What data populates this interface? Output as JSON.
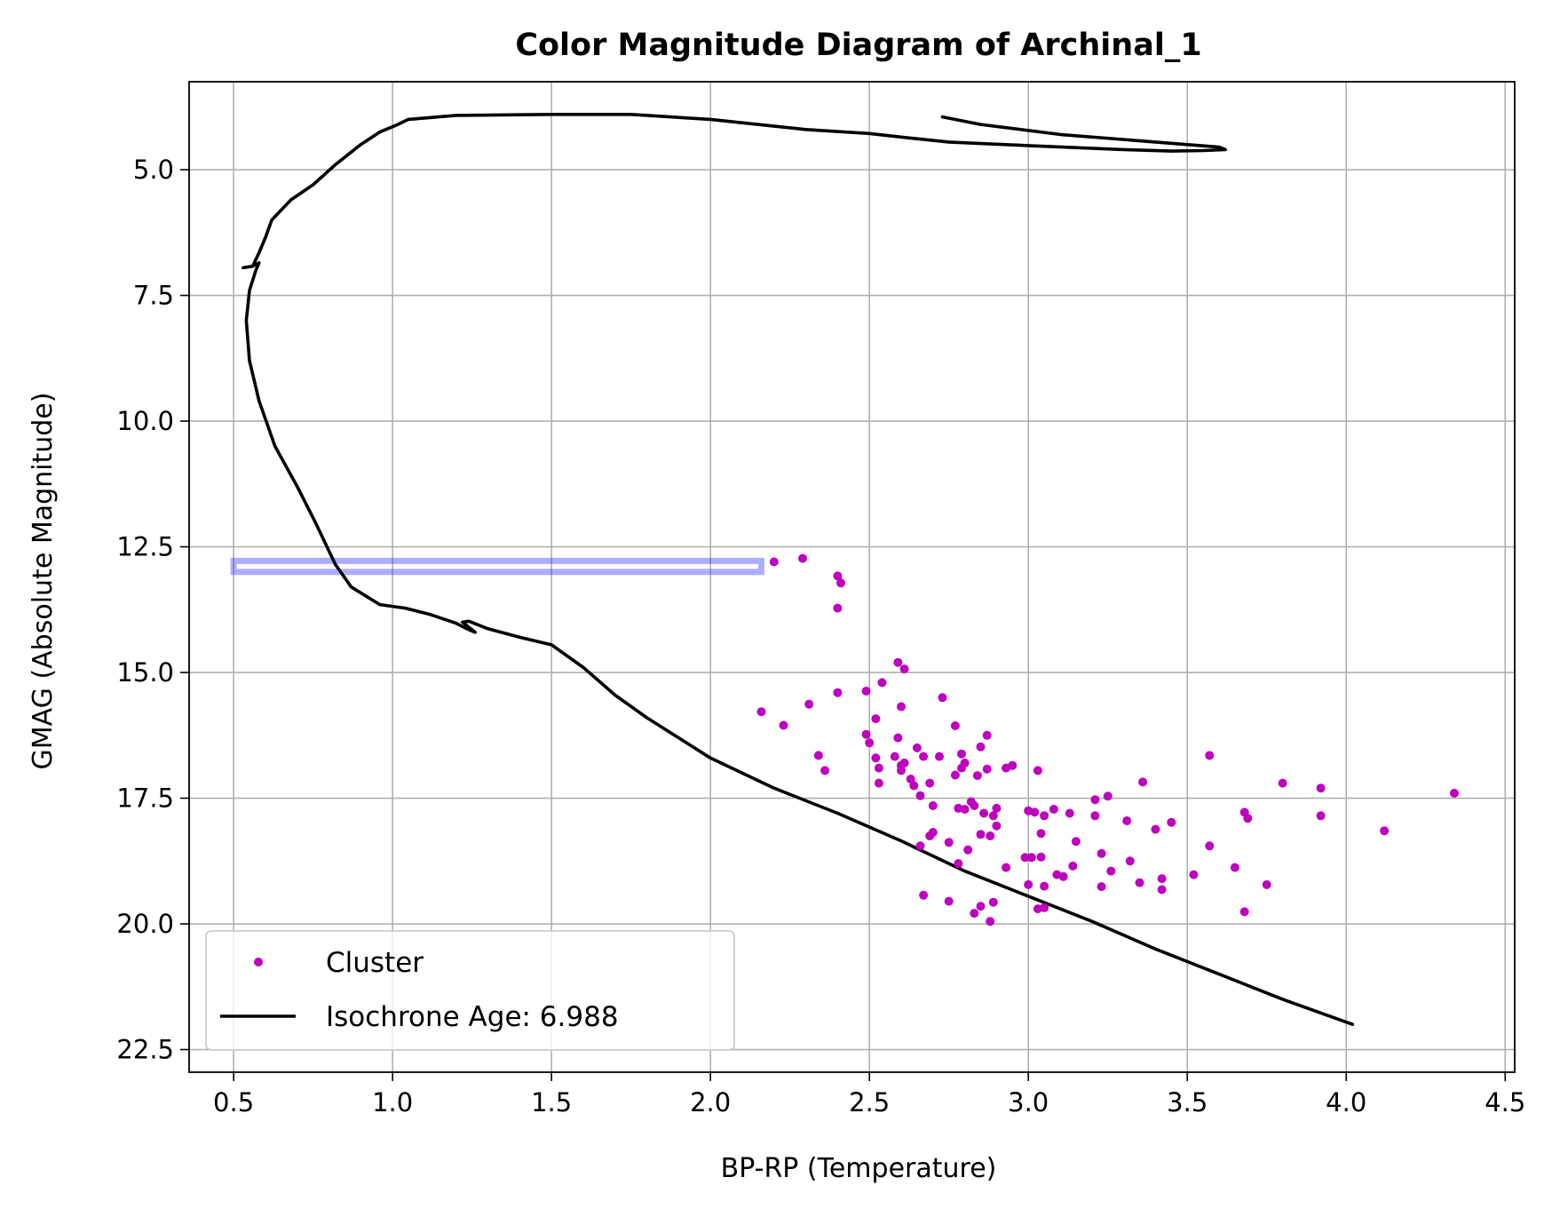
{
  "chart_data": {
    "type": "scatter",
    "title": "Color Magnitude Diagram of Archinal_1",
    "xlabel": "BP-RP (Temperature)",
    "ylabel": "GMAG (Absolute Magnitude)",
    "xlim": [
      0.36,
      4.53
    ],
    "ylim": [
      22.95,
      3.25
    ],
    "y_inverted": true,
    "grid": true,
    "legend_position": "lower-left",
    "x_ticks": [
      0.5,
      1.0,
      1.5,
      2.0,
      2.5,
      3.0,
      3.5,
      4.0,
      4.5
    ],
    "x_tick_labels": [
      "0.5",
      "1.0",
      "1.5",
      "2.0",
      "2.5",
      "3.0",
      "3.5",
      "4.0",
      "4.5"
    ],
    "y_ticks": [
      5.0,
      7.5,
      10.0,
      12.5,
      15.0,
      17.5,
      20.0,
      22.5
    ],
    "y_tick_labels": [
      "5.0",
      "7.5",
      "10.0",
      "12.5",
      "15.0",
      "17.5",
      "20.0",
      "22.5"
    ],
    "colors": {
      "cluster": "#bf00bf",
      "isochrone": "#000000",
      "highlight": "#3333ff",
      "grid": "#b0b0b0"
    },
    "highlight_box": {
      "x": [
        0.5,
        2.16
      ],
      "y": [
        12.78,
        13.0
      ]
    },
    "series": [
      {
        "name": "Cluster",
        "kind": "scatter",
        "points": [
          [
            2.2,
            12.8
          ],
          [
            2.29,
            12.73
          ],
          [
            2.4,
            13.08
          ],
          [
            2.41,
            13.22
          ],
          [
            2.4,
            13.72
          ],
          [
            2.16,
            15.78
          ],
          [
            2.23,
            16.05
          ],
          [
            2.31,
            15.63
          ],
          [
            2.34,
            16.65
          ],
          [
            2.36,
            16.95
          ],
          [
            2.4,
            15.4
          ],
          [
            2.49,
            15.37
          ],
          [
            2.49,
            16.23
          ],
          [
            2.5,
            16.4
          ],
          [
            2.52,
            16.7
          ],
          [
            2.52,
            15.92
          ],
          [
            2.53,
            17.2
          ],
          [
            2.53,
            16.9
          ],
          [
            2.54,
            15.2
          ],
          [
            2.58,
            16.67
          ],
          [
            2.59,
            14.8
          ],
          [
            2.6,
            16.85
          ],
          [
            2.59,
            16.3
          ],
          [
            2.6,
            15.68
          ],
          [
            2.6,
            16.95
          ],
          [
            2.61,
            14.93
          ],
          [
            2.61,
            16.8
          ],
          [
            2.63,
            17.12
          ],
          [
            2.64,
            17.25
          ],
          [
            2.65,
            16.5
          ],
          [
            2.66,
            17.45
          ],
          [
            2.66,
            18.45
          ],
          [
            2.67,
            16.67
          ],
          [
            2.67,
            19.43
          ],
          [
            2.69,
            18.25
          ],
          [
            2.69,
            17.2
          ],
          [
            2.7,
            17.65
          ],
          [
            2.7,
            18.18
          ],
          [
            2.72,
            16.67
          ],
          [
            2.73,
            15.5
          ],
          [
            2.75,
            18.38
          ],
          [
            2.75,
            19.55
          ],
          [
            2.77,
            16.06
          ],
          [
            2.77,
            17.04
          ],
          [
            2.78,
            17.7
          ],
          [
            2.78,
            18.8
          ],
          [
            2.79,
            16.62
          ],
          [
            2.79,
            16.9
          ],
          [
            2.8,
            16.8
          ],
          [
            2.8,
            17.72
          ],
          [
            2.81,
            18.53
          ],
          [
            2.82,
            17.57
          ],
          [
            2.83,
            19.79
          ],
          [
            2.83,
            17.65
          ],
          [
            2.84,
            17.05
          ],
          [
            2.85,
            19.65
          ],
          [
            2.85,
            16.48
          ],
          [
            2.85,
            18.22
          ],
          [
            2.86,
            17.8
          ],
          [
            2.87,
            16.92
          ],
          [
            2.87,
            16.25
          ],
          [
            2.88,
            19.95
          ],
          [
            2.88,
            18.25
          ],
          [
            2.89,
            17.85
          ],
          [
            2.89,
            19.57
          ],
          [
            2.9,
            17.7
          ],
          [
            2.9,
            18.05
          ],
          [
            2.93,
            16.9
          ],
          [
            2.93,
            18.88
          ],
          [
            2.95,
            16.85
          ],
          [
            2.99,
            18.68
          ],
          [
            3.0,
            19.22
          ],
          [
            3.0,
            17.75
          ],
          [
            3.01,
            18.68
          ],
          [
            3.02,
            17.78
          ],
          [
            3.03,
            19.7
          ],
          [
            3.03,
            16.95
          ],
          [
            3.04,
            18.2
          ],
          [
            3.04,
            18.67
          ],
          [
            3.05,
            17.85
          ],
          [
            3.05,
            19.25
          ],
          [
            3.05,
            19.68
          ],
          [
            3.08,
            17.72
          ],
          [
            3.09,
            19.02
          ],
          [
            3.11,
            19.06
          ],
          [
            3.13,
            17.8
          ],
          [
            3.14,
            18.85
          ],
          [
            3.15,
            18.36
          ],
          [
            3.21,
            17.53
          ],
          [
            3.21,
            17.85
          ],
          [
            3.23,
            18.6
          ],
          [
            3.23,
            19.26
          ],
          [
            3.25,
            17.46
          ],
          [
            3.26,
            18.95
          ],
          [
            3.31,
            17.95
          ],
          [
            3.32,
            18.75
          ],
          [
            3.35,
            19.18
          ],
          [
            3.36,
            17.18
          ],
          [
            3.4,
            18.12
          ],
          [
            3.42,
            19.1
          ],
          [
            3.42,
            19.32
          ],
          [
            3.45,
            17.98
          ],
          [
            3.52,
            19.02
          ],
          [
            3.57,
            16.65
          ],
          [
            3.57,
            18.45
          ],
          [
            3.65,
            18.88
          ],
          [
            3.68,
            17.78
          ],
          [
            3.68,
            19.76
          ],
          [
            3.69,
            17.9
          ],
          [
            3.75,
            19.22
          ],
          [
            3.8,
            17.2
          ],
          [
            3.92,
            17.3
          ],
          [
            3.92,
            17.85
          ],
          [
            4.12,
            18.15
          ],
          [
            4.34,
            17.4
          ]
        ]
      },
      {
        "name": "Isochrone Age: 6.988",
        "kind": "line",
        "points": [
          [
            2.73,
            3.95
          ],
          [
            2.85,
            4.1
          ],
          [
            3.1,
            4.3
          ],
          [
            3.4,
            4.45
          ],
          [
            3.6,
            4.55
          ],
          [
            3.62,
            4.6
          ],
          [
            3.55,
            4.62
          ],
          [
            3.45,
            4.63
          ],
          [
            3.3,
            4.6
          ],
          [
            3.0,
            4.52
          ],
          [
            2.75,
            4.45
          ],
          [
            2.6,
            4.35
          ],
          [
            2.5,
            4.28
          ],
          [
            2.3,
            4.2
          ],
          [
            2.0,
            4.0
          ],
          [
            1.75,
            3.9
          ],
          [
            1.5,
            3.9
          ],
          [
            1.2,
            3.92
          ],
          [
            1.05,
            4.0
          ],
          [
            1.01,
            4.12
          ],
          [
            0.96,
            4.25
          ],
          [
            0.9,
            4.5
          ],
          [
            0.82,
            4.9
          ],
          [
            0.75,
            5.3
          ],
          [
            0.68,
            5.6
          ],
          [
            0.62,
            6.0
          ],
          [
            0.6,
            6.35
          ],
          [
            0.58,
            6.65
          ],
          [
            0.56,
            6.92
          ],
          [
            0.53,
            6.95
          ],
          [
            0.56,
            6.92
          ],
          [
            0.58,
            6.85
          ],
          [
            0.57,
            7.0
          ],
          [
            0.55,
            7.4
          ],
          [
            0.54,
            8.0
          ],
          [
            0.55,
            8.8
          ],
          [
            0.58,
            9.6
          ],
          [
            0.63,
            10.5
          ],
          [
            0.7,
            11.3
          ],
          [
            0.76,
            12.05
          ],
          [
            0.82,
            12.85
          ],
          [
            0.87,
            13.3
          ],
          [
            0.96,
            13.65
          ],
          [
            1.04,
            13.72
          ],
          [
            1.12,
            13.85
          ],
          [
            1.2,
            14.02
          ],
          [
            1.23,
            14.12
          ],
          [
            1.26,
            14.2
          ],
          [
            1.22,
            14.0
          ],
          [
            1.24,
            13.98
          ],
          [
            1.3,
            14.13
          ],
          [
            1.4,
            14.3
          ],
          [
            1.5,
            14.45
          ],
          [
            1.6,
            14.9
          ],
          [
            1.7,
            15.45
          ],
          [
            1.8,
            15.9
          ],
          [
            1.9,
            16.3
          ],
          [
            2.0,
            16.7
          ],
          [
            2.2,
            17.3
          ],
          [
            2.4,
            17.8
          ],
          [
            2.6,
            18.35
          ],
          [
            2.8,
            18.95
          ],
          [
            3.0,
            19.45
          ],
          [
            3.2,
            19.95
          ],
          [
            3.4,
            20.5
          ],
          [
            3.6,
            21.0
          ],
          [
            3.8,
            21.5
          ],
          [
            4.02,
            22.0
          ]
        ]
      }
    ]
  }
}
